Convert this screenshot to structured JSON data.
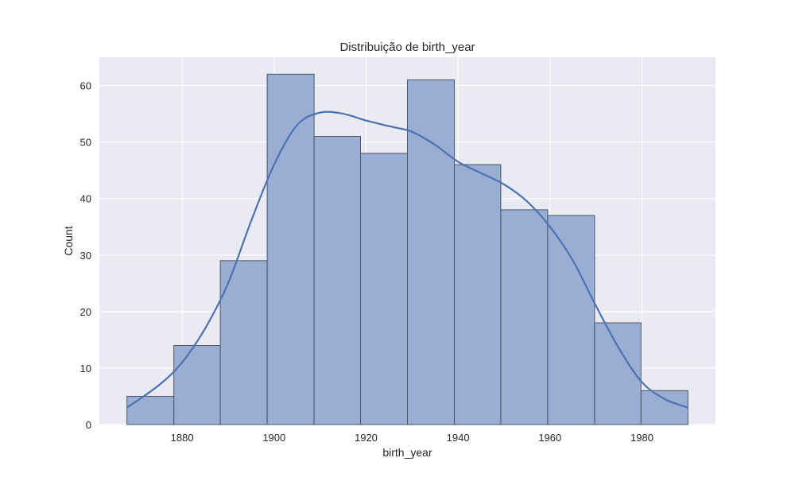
{
  "chart_data": {
    "type": "bar",
    "subtype": "histogram_with_kde",
    "title": "Distribuição de birth_year",
    "xlabel": "birth_year",
    "ylabel": "Count",
    "xlim": [
      1862,
      1996
    ],
    "ylim": [
      0,
      65
    ],
    "grid": true,
    "style": "seaborn-darkgrid",
    "bin_edges": [
      1868,
      1878.2,
      1888.3,
      1898.5,
      1908.7,
      1918.8,
      1929,
      1939.2,
      1949.3,
      1959.5,
      1969.7,
      1979.8,
      1990
    ],
    "values": [
      5,
      14,
      29,
      62,
      51,
      48,
      61,
      46,
      38,
      37,
      18,
      6
    ],
    "xticks": [
      1880,
      1900,
      1920,
      1940,
      1960,
      1980
    ],
    "yticks": [
      0,
      10,
      20,
      30,
      40,
      50,
      60
    ],
    "kde": {
      "x": [
        1868,
        1875,
        1880,
        1885,
        1890,
        1895,
        1900,
        1905,
        1910,
        1915,
        1920,
        1925,
        1930,
        1935,
        1940,
        1945,
        1950,
        1955,
        1960,
        1965,
        1970,
        1975,
        1980,
        1985,
        1990
      ],
      "y": [
        3,
        7,
        11,
        17,
        25,
        36,
        46,
        53,
        55.2,
        55,
        53.8,
        52.8,
        51.8,
        49.5,
        46.5,
        44.5,
        42.5,
        39.5,
        35,
        29,
        21,
        13.5,
        7.5,
        4.5,
        3
      ]
    },
    "colors": {
      "bar_fill": "#9aadd2",
      "bar_edge": "#4c5566",
      "kde_line": "#4c72b0",
      "plot_background": "#eaeaf2",
      "grid": "#ffffff"
    }
  }
}
